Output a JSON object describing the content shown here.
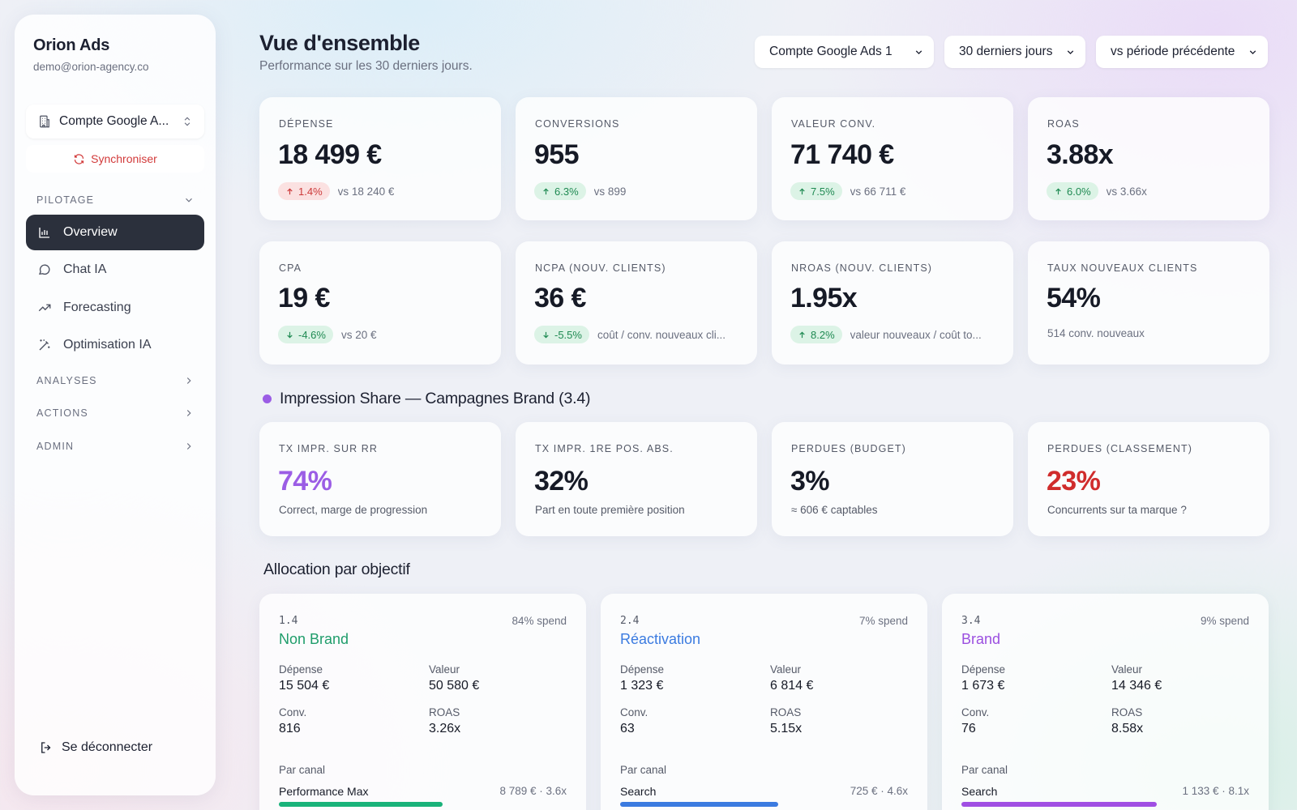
{
  "sidebar": {
    "brand": "Orion Ads",
    "email": "demo@orion-agency.co",
    "account": "Compte Google A...",
    "sync": "Synchroniser",
    "sections": {
      "pilotage": "PILOTAGE",
      "analyses": "ANALYSES",
      "actions": "ACTIONS",
      "admin": "ADMIN"
    },
    "items": [
      {
        "label": "Overview",
        "icon": "bar-chart-icon",
        "active": true
      },
      {
        "label": "Chat IA",
        "icon": "chat-bubble-icon"
      },
      {
        "label": "Forecasting",
        "icon": "trend-up-icon"
      },
      {
        "label": "Optimisation IA",
        "icon": "magic-wand-icon"
      }
    ],
    "logout": "Se déconnecter"
  },
  "header": {
    "title": "Vue d'ensemble",
    "subtitle": "Performance sur les 30 derniers jours.",
    "account_select": "Compte Google Ads 1",
    "period_select": "30 derniers jours",
    "compare_select": "vs période précédente"
  },
  "kpis": [
    {
      "label": "DÉPENSE",
      "value": "18 499 €",
      "delta": "1.4%",
      "direction": "up",
      "tone": "red",
      "compare": "vs 18 240 €"
    },
    {
      "label": "CONVERSIONS",
      "value": "955",
      "delta": "6.3%",
      "direction": "up",
      "tone": "green",
      "compare": "vs 899"
    },
    {
      "label": "VALEUR CONV.",
      "value": "71 740 €",
      "delta": "7.5%",
      "direction": "up",
      "tone": "green",
      "compare": "vs 66 711 €"
    },
    {
      "label": "ROAS",
      "value": "3.88x",
      "delta": "6.0%",
      "direction": "up",
      "tone": "green",
      "compare": "vs 3.66x"
    },
    {
      "label": "CPA",
      "value": "19 €",
      "delta": "-4.6%",
      "direction": "down",
      "tone": "green",
      "compare": "vs 20 €"
    },
    {
      "label": "NCPA (NOUV. CLIENTS)",
      "value": "36 €",
      "delta": "-5.5%",
      "direction": "down",
      "tone": "green",
      "compare": "coût / conv. nouveaux cli..."
    },
    {
      "label": "NROAS (NOUV. CLIENTS)",
      "value": "1.95x",
      "delta": "8.2%",
      "direction": "up",
      "tone": "green",
      "compare": "valeur nouveaux / coût to..."
    },
    {
      "label": "TAUX NOUVEAUX CLIENTS",
      "value": "54%",
      "note": "514 conv. nouveaux"
    }
  ],
  "impression_share": {
    "title": "Impression Share — Campagnes Brand (3.4)",
    "accent": "#9b5de5",
    "cards": [
      {
        "label": "TX IMPR. SUR RR",
        "value": "74%",
        "note": "Correct, marge de progression",
        "color": "#9b5de5"
      },
      {
        "label": "TX IMPR. 1RE POS. ABS.",
        "value": "32%",
        "note": "Part en toute première position",
        "color": "#161a26"
      },
      {
        "label": "PERDUES (BUDGET)",
        "value": "3%",
        "note": "≈ 606 € captables",
        "color": "#161a26"
      },
      {
        "label": "PERDUES (CLASSEMENT)",
        "value": "23%",
        "note": "Concurrents sur ta marque ?",
        "color": "#d02c2c"
      }
    ]
  },
  "allocation": {
    "title": "Allocation par objectif",
    "labels": {
      "spend": "Dépense",
      "value": "Valeur",
      "conv": "Conv.",
      "roas": "ROAS",
      "canal": "Par canal"
    },
    "cards": [
      {
        "code": "1.4",
        "spend_share": "84% spend",
        "name": "Non Brand",
        "color": "#1f9d6b",
        "depense": "15 504 €",
        "valeur": "50 580 €",
        "conv": "816",
        "roas": "3.26x",
        "canal": "Performance Max",
        "canal_value": "8 789 € · 3.6x",
        "canal_share": 0.57,
        "bar_color": "#19b27a"
      },
      {
        "code": "2.4",
        "spend_share": "7% spend",
        "name": "Réactivation",
        "color": "#3b7be0",
        "depense": "1 323 €",
        "valeur": "6 814 €",
        "conv": "63",
        "roas": "5.15x",
        "canal": "Search",
        "canal_value": "725 € · 4.6x",
        "canal_share": 0.55,
        "bar_color": "#3b7be0"
      },
      {
        "code": "3.4",
        "spend_share": "9% spend",
        "name": "Brand",
        "color": "#9b4fe0",
        "depense": "1 673 €",
        "valeur": "14 346 €",
        "conv": "76",
        "roas": "8.58x",
        "canal": "Search",
        "canal_value": "1 133 € · 8.1x",
        "canal_share": 0.68,
        "bar_color": "#a04fe3"
      }
    ]
  }
}
